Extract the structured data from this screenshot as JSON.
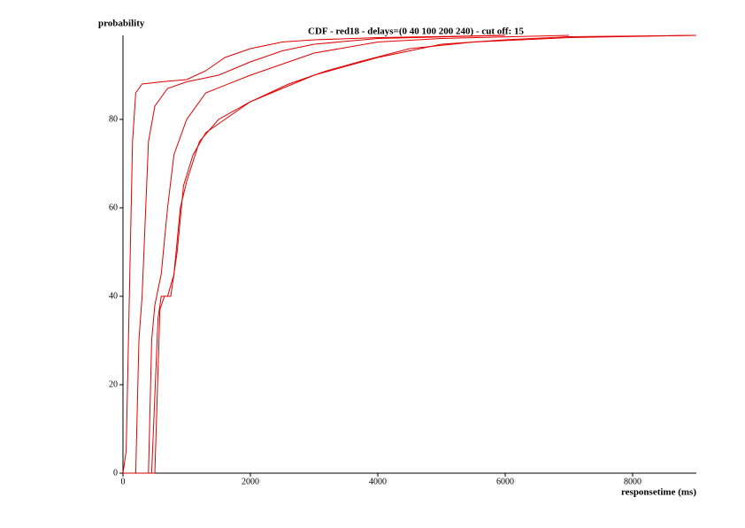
{
  "chart_data": {
    "type": "line",
    "title": "CDF - red18 - delays=(0 40 100 200 240) - cut off: 15",
    "y_label": "probability",
    "x_label": "responsetime (ms)",
    "xlim": [
      0,
      9000
    ],
    "ylim": [
      0,
      100
    ],
    "xticks": [
      0,
      2000,
      4000,
      6000,
      8000
    ],
    "yticks": [
      0,
      20,
      40,
      60,
      80
    ],
    "grid": false,
    "series": [
      {
        "color": "#e00000",
        "x": [
          0,
          50,
          100,
          150,
          200,
          300,
          600,
          1000,
          1300,
          1600,
          2000,
          2500,
          3000,
          4000,
          6000
        ],
        "values": [
          0,
          5,
          40,
          75,
          86,
          88,
          88.5,
          89,
          91,
          94,
          96,
          97.5,
          98,
          98.5,
          99
        ]
      },
      {
        "color": "#e00000",
        "x": [
          0,
          200,
          250,
          300,
          400,
          500,
          700,
          1000,
          1500,
          2000,
          2500,
          3000,
          4000,
          6000
        ],
        "values": [
          0,
          0,
          30,
          40,
          75,
          83,
          87,
          88.5,
          90,
          93,
          95.5,
          97,
          98.3,
          99
        ]
      },
      {
        "color": "#e00000",
        "x": [
          0,
          400,
          450,
          500,
          600,
          700,
          800,
          1000,
          1300,
          2000,
          2500,
          3000,
          4000,
          5000,
          7000
        ],
        "values": [
          0,
          0,
          30,
          38,
          45,
          60,
          72,
          80,
          86,
          90,
          92.5,
          95,
          97.5,
          98.3,
          99
        ]
      },
      {
        "color": "#e00000",
        "x": [
          0,
          450,
          550,
          600,
          700,
          800,
          900,
          1000,
          1200,
          1500,
          2000,
          2500,
          3000,
          4000,
          5000,
          6000,
          7000,
          9000
        ],
        "values": [
          0,
          0,
          35,
          40,
          40,
          45,
          60,
          66,
          75,
          80,
          84,
          87,
          90,
          94,
          97,
          98,
          98.7,
          99
        ]
      },
      {
        "color": "#e00000",
        "x": [
          0,
          500,
          580,
          650,
          750,
          850,
          950,
          1100,
          1300,
          1700,
          2000,
          2600,
          3200,
          3700,
          4500,
          5500,
          7000,
          9000
        ],
        "values": [
          0,
          0,
          37,
          40,
          40,
          50,
          65,
          72,
          77,
          81,
          84,
          88,
          91,
          93,
          96,
          97.5,
          98.5,
          99
        ]
      }
    ]
  }
}
